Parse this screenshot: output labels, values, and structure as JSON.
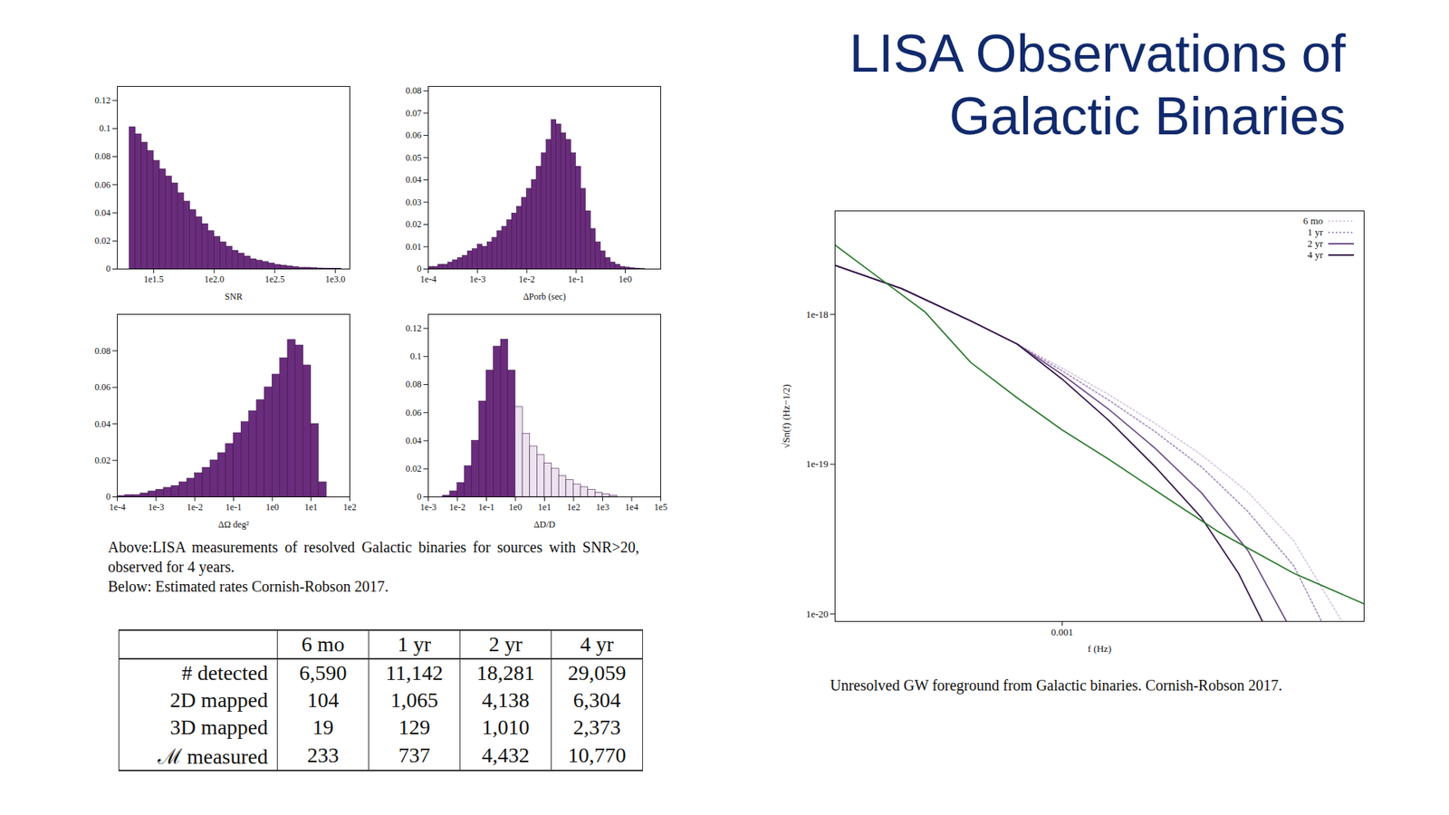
{
  "title_lines": [
    "LISA Observations of",
    "Galactic Binaries"
  ],
  "histogram_caption": [
    "Above:LISA measurements of resolved Galactic binaries for sources with SNR>20, observed for 4 years.",
    "Below: Estimated rates Cornish-Robson 2017."
  ],
  "table": {
    "header": [
      null,
      "6 mo",
      "1 yr",
      "2 yr",
      "4 yr"
    ],
    "rows": [
      [
        "# detected",
        "6,590",
        "11,142",
        "18,281",
        "29,059"
      ],
      [
        "2D mapped",
        "104",
        "1,065",
        "4,138",
        "6,304"
      ],
      [
        "3D mapped",
        "19",
        "129",
        "1,010",
        "2,373"
      ],
      [
        "ℳ measured",
        "233",
        "737",
        "4,432",
        "10,770"
      ]
    ]
  },
  "chart_data": [
    {
      "type": "histogram",
      "xlabel": "SNR",
      "log": "x",
      "color": "#6a2c7c",
      "bins": [
        19.95,
        22.39,
        25.12,
        28.18,
        31.62,
        35.48,
        39.81,
        44.67,
        50.12,
        56.23,
        63.1,
        70.79,
        79.43,
        89.13,
        100,
        112.2,
        125.9,
        141.3,
        158.5,
        177.8,
        199.5,
        223.9,
        251.2,
        281.8,
        316.2,
        354.8,
        398.1,
        446.7,
        501.2,
        562.3,
        631,
        707.9,
        794.3,
        891.3,
        1000,
        1122
      ],
      "values": [
        0.101,
        0.096,
        0.09,
        0.084,
        0.077,
        0.071,
        0.066,
        0.061,
        0.054,
        0.048,
        0.042,
        0.037,
        0.032,
        0.027,
        0.023,
        0.019,
        0.016,
        0.013,
        0.011,
        0.009,
        0.007,
        0.006,
        0.005,
        0.004,
        0.003,
        0.0025,
        0.002,
        0.0015,
        0.001,
        0.001,
        0.0007,
        0.0005,
        0.0004,
        0.0003,
        0.0002
      ],
      "xlim": [
        15.85,
        1318
      ],
      "xticks": [
        {
          "value": 31.62,
          "label": "1e1.5"
        },
        {
          "value": 100,
          "label": "1e2.0"
        },
        {
          "value": 316.2,
          "label": "1e2.5"
        },
        {
          "value": 1000,
          "label": "1e3.0"
        }
      ],
      "ylim": [
        0,
        0.13
      ],
      "yticks": [
        0,
        0.02,
        0.04,
        0.06,
        0.08,
        0.1,
        0.12
      ]
    },
    {
      "type": "histogram",
      "xlabel": "ΔPorb (sec)",
      "log": "x",
      "color": "#6a2c7c",
      "bins": [
        0.0001,
        0.0001259,
        0.0001585,
        0.0001995,
        0.0002512,
        0.0003162,
        0.0003981,
        0.0005012,
        0.000631,
        0.0007943,
        0.001,
        0.001259,
        0.001585,
        0.001995,
        0.002512,
        0.003162,
        0.003981,
        0.005012,
        0.00631,
        0.007943,
        0.01,
        0.01259,
        0.01585,
        0.01995,
        0.02512,
        0.03162,
        0.03981,
        0.05012,
        0.0631,
        0.07943,
        0.1,
        0.1259,
        0.1585,
        0.1995,
        0.2512,
        0.3162,
        0.3981,
        0.5012,
        0.631,
        0.7943,
        1,
        1.259,
        1.585,
        1.995,
        2.512
      ],
      "values": [
        0.001,
        0.001,
        0.002,
        0.002,
        0.003,
        0.004,
        0.005,
        0.006,
        0.008,
        0.009,
        0.011,
        0.01,
        0.012,
        0.014,
        0.017,
        0.019,
        0.022,
        0.025,
        0.028,
        0.032,
        0.036,
        0.04,
        0.046,
        0.052,
        0.058,
        0.067,
        0.065,
        0.061,
        0.058,
        0.052,
        0.046,
        0.036,
        0.026,
        0.018,
        0.012,
        0.008,
        0.005,
        0.003,
        0.002,
        0.001,
        0.0007,
        0.0004,
        0.0002,
        0.0001
      ],
      "xlim": [
        0.0001,
        5.25
      ],
      "xticks": [
        {
          "value": 0.0001,
          "label": "1e-4"
        },
        {
          "value": 0.001,
          "label": "1e-3"
        },
        {
          "value": 0.01,
          "label": "1e-2"
        },
        {
          "value": 0.1,
          "label": "1e-1"
        },
        {
          "value": 1,
          "label": "1e0"
        }
      ],
      "ylim": [
        0,
        0.082
      ],
      "yticks": [
        0,
        0.01,
        0.02,
        0.03,
        0.04,
        0.05,
        0.06,
        0.07,
        0.08
      ]
    },
    {
      "type": "histogram",
      "xlabel": "ΔΩ deg²",
      "log": "x",
      "color": "#6a2c7c",
      "bins": [
        0.0001,
        0.0001585,
        0.0002512,
        0.0003981,
        0.000631,
        0.001,
        0.001585,
        0.002512,
        0.003981,
        0.00631,
        0.01,
        0.01585,
        0.02512,
        0.03981,
        0.0631,
        0.1,
        0.1585,
        0.2512,
        0.3981,
        0.631,
        1,
        1.585,
        2.512,
        3.981,
        6.31,
        10,
        15.85,
        25.12
      ],
      "values": [
        0.0005,
        0.001,
        0.001,
        0.002,
        0.003,
        0.004,
        0.005,
        0.006,
        0.008,
        0.01,
        0.013,
        0.016,
        0.02,
        0.024,
        0.029,
        0.035,
        0.041,
        0.047,
        0.053,
        0.06,
        0.067,
        0.076,
        0.086,
        0.083,
        0.072,
        0.04,
        0.008
      ],
      "xlim": [
        0.0001,
        100
      ],
      "xticks": [
        {
          "value": 0.0001,
          "label": "1e-4"
        },
        {
          "value": 0.001,
          "label": "1e-3"
        },
        {
          "value": 0.01,
          "label": "1e-2"
        },
        {
          "value": 0.1,
          "label": "1e-1"
        },
        {
          "value": 1,
          "label": "1e0"
        },
        {
          "value": 10,
          "label": "1e1"
        },
        {
          "value": 100,
          "label": "1e2"
        }
      ],
      "ylim": [
        0,
        0.1
      ],
      "yticks": [
        0,
        0.02,
        0.04,
        0.06,
        0.08
      ]
    },
    {
      "type": "histogram",
      "xlabel": "ΔD/D",
      "log": "x",
      "colors": [
        "#6a2c7c",
        "#6a2c7c",
        "#6a2c7c",
        "#6a2c7c",
        "#6a2c7c",
        "#6a2c7c",
        "#6a2c7c",
        "#6a2c7c",
        "#6a2c7c",
        "#6a2c7c",
        "#ece3ef",
        "#ece3ef",
        "#ece3ef",
        "#ece3ef",
        "#ece3ef",
        "#ece3ef",
        "#ece3ef",
        "#ece3ef",
        "#ece3ef",
        "#ece3ef",
        "#ece3ef",
        "#ece3ef",
        "#ece3ef",
        "#ece3ef"
      ],
      "bins": [
        0.003162,
        0.005623,
        0.01,
        0.01778,
        0.03162,
        0.05623,
        0.1,
        0.1778,
        0.3162,
        0.5623,
        1,
        1.778,
        3.162,
        5.623,
        10,
        17.78,
        31.62,
        56.23,
        100,
        177.8,
        316.2,
        562.3,
        1000,
        1778,
        3162
      ],
      "values": [
        0.001,
        0.004,
        0.01,
        0.022,
        0.04,
        0.068,
        0.09,
        0.107,
        0.112,
        0.09,
        0.064,
        0.045,
        0.036,
        0.03,
        0.024,
        0.02,
        0.015,
        0.012,
        0.009,
        0.007,
        0.005,
        0.003,
        0.002,
        0.001
      ],
      "xlim": [
        0.001,
        100000
      ],
      "xticks": [
        {
          "value": 0.001,
          "label": "1e-3"
        },
        {
          "value": 0.01,
          "label": "1e-2"
        },
        {
          "value": 0.1,
          "label": "1e-1"
        },
        {
          "value": 1,
          "label": "1e0"
        },
        {
          "value": 10,
          "label": "1e1"
        },
        {
          "value": 100,
          "label": "1e2"
        },
        {
          "value": 1000,
          "label": "1e3"
        },
        {
          "value": 10000,
          "label": "1e4"
        },
        {
          "value": 100000,
          "label": "1e5"
        }
      ],
      "ylim": [
        0,
        0.13
      ],
      "yticks": [
        0,
        0.02,
        0.04,
        0.06,
        0.08,
        0.1,
        0.12
      ]
    },
    {
      "type": "line",
      "xlabel": "f (Hz)",
      "ylabel": "√Sn(f) (Hz−1/2)",
      "log": true,
      "legend": "top-right",
      "caption": "Unresolved GW foreground from Galactic binaries. Cornish-Robson 2017.",
      "xlim": [
        0.0002357,
        0.00683
      ],
      "xticks": [
        0.001
      ],
      "ylim": [
        8.92e-21,
        4.91e-18
      ],
      "yticks": [
        {
          "value": 1e-18,
          "label": "1e-18"
        },
        {
          "value": 1e-19,
          "label": "1e-19"
        },
        {
          "value": 1e-20,
          "label": "1e-20"
        }
      ],
      "series": [
        {
          "name": "6 mo",
          "color": "#d8c8e0",
          "line_style": "dotted",
          "x": [
            0.0002357,
            0.0003598,
            0.000559,
            0.00075,
            0.001,
            0.001349,
            0.00181,
            0.002428,
            0.003257,
            0.004369,
            0.00593
          ],
          "values": [
            2.125e-18,
            1.489e-18,
            9.05e-19,
            6.35e-19,
            4.385e-19,
            2.904e-19,
            1.869e-19,
            1.153e-19,
            6.53e-20,
            3.074e-20,
            8.92e-21
          ]
        },
        {
          "name": "1 yr",
          "color": "#a993bd",
          "line_style": "dotted",
          "x": [
            0.0002357,
            0.0003598,
            0.000559,
            0.00075,
            0.001,
            0.001349,
            0.00181,
            0.002428,
            0.003257,
            0.004369,
            0.00521
          ],
          "values": [
            2.125e-18,
            1.489e-18,
            9.05e-19,
            6.35e-19,
            4.202e-19,
            2.666e-19,
            1.644e-19,
            9.58e-20,
            4.843e-20,
            2.094e-20,
            8.92e-21
          ]
        },
        {
          "name": "2 yr",
          "color": "#6d4f88",
          "line_style": "solid",
          "x": [
            0.0002357,
            0.0003598,
            0.000559,
            0.00075,
            0.001,
            0.001349,
            0.00181,
            0.002428,
            0.003257,
            0.004168
          ],
          "values": [
            2.125e-18,
            1.489e-18,
            9.05e-19,
            6.35e-19,
            3.97e-19,
            2.313e-19,
            1.273e-19,
            6.437e-20,
            2.666e-20,
            8.92e-21
          ]
        },
        {
          "name": "4 yr",
          "color": "#35184a",
          "line_style": "solid",
          "x": [
            0.0002357,
            0.0003598,
            0.000559,
            0.00075,
            0.001,
            0.001349,
            0.00181,
            0.002428,
            0.003071,
            0.003578
          ],
          "values": [
            2.125e-18,
            1.489e-18,
            9.05e-19,
            6.35e-19,
            3.697e-19,
            1.95e-19,
            9.58e-20,
            4.385e-20,
            1.869e-20,
            8.92e-21
          ]
        },
        {
          "color": "#2c7a2e",
          "line_style": "solid",
          "x": [
            0.0002357,
            0.0003107,
            0.0004168,
            0.000559,
            0.00075,
            0.001,
            0.001349,
            0.00192,
            0.002699,
            0.004369,
            0.00683
          ],
          "values": [
            2.904e-18,
            1.766e-18,
            1.044e-18,
            4.775e-19,
            2.783e-19,
            1.692e-19,
            1.074e-19,
            6.08e-20,
            3.543e-20,
            1.869e-20,
            1.169e-20
          ]
        }
      ]
    }
  ]
}
